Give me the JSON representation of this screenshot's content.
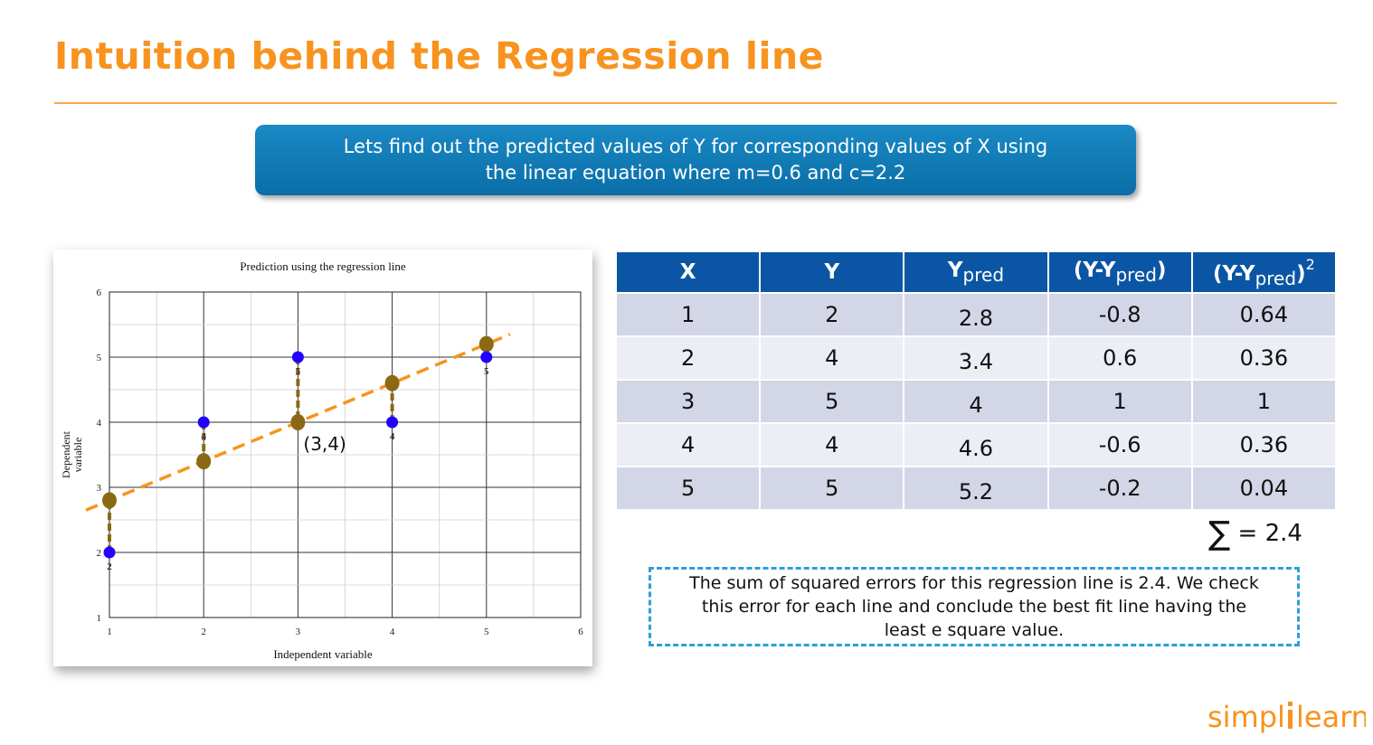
{
  "header": {
    "title": "Intuition behind the Regression line"
  },
  "banner": {
    "line1": "Lets find out the predicted values of Y for corresponding values of X using",
    "line2": "the linear equation where m=0.6 and c=2.2"
  },
  "chart_data": {
    "type": "scatter",
    "title": "Prediction using the regression line",
    "xlabel": "Independent variable",
    "ylabel": "Dependent variable",
    "xlim": [
      1,
      6
    ],
    "ylim": [
      1,
      6
    ],
    "xticks": [
      "1",
      "2",
      "3",
      "4",
      "5",
      "6"
    ],
    "yticks": [
      "1",
      "2",
      "3",
      "4",
      "5",
      "6"
    ],
    "grid": true,
    "series": [
      {
        "role": "actual",
        "color": "#2200ff",
        "points": [
          [
            1,
            2
          ],
          [
            2,
            4
          ],
          [
            3,
            5
          ],
          [
            4,
            4
          ],
          [
            5,
            5
          ]
        ]
      },
      {
        "role": "predicted",
        "color": "#8b6914",
        "points": [
          [
            1,
            2.8
          ],
          [
            2,
            3.4
          ],
          [
            3,
            4
          ],
          [
            4,
            4.6
          ],
          [
            5,
            5.2
          ]
        ]
      }
    ],
    "regression_line": {
      "m": 0.6,
      "c": 2.2,
      "x_range": [
        0.75,
        5.25
      ],
      "color": "#f7941d",
      "style": "dashed"
    },
    "point_labels": [
      "2",
      "4",
      "5",
      "4",
      "5"
    ],
    "annotation": "(3,4)"
  },
  "table": {
    "headers": [
      "X",
      "Y",
      "Y",
      "(Y-Y",
      "(Y-Y"
    ],
    "header_subs": [
      "",
      "",
      "pred",
      "pred",
      "pred"
    ],
    "header_tails": [
      "",
      "",
      "",
      ")",
      ")"
    ],
    "header_sups": [
      "",
      "",
      "",
      "",
      "2"
    ],
    "rows": [
      [
        "1",
        "2",
        "2.8",
        "-0.8",
        "0.64"
      ],
      [
        "2",
        "4",
        "3.4",
        "0.6",
        "0.36"
      ],
      [
        "3",
        "5",
        "4",
        "1",
        "1"
      ],
      [
        "4",
        "4",
        "4.6",
        "-0.6",
        "0.36"
      ],
      [
        "5",
        "5",
        "5.2",
        "-0.2",
        "0.04"
      ]
    ]
  },
  "summary": {
    "sigma": "∑",
    "value": "= 2.4"
  },
  "note": {
    "line1": "The sum of squared errors for this regression line is 2.4. We check",
    "line2": "this error for each line and conclude the best fit line having the",
    "line3": "least e square value."
  },
  "logo": {
    "part1": "simpl",
    "part2": "learn"
  },
  "colors": {
    "accent": "#f7931e",
    "banner": "#0b6fa8",
    "table_header": "#0b56a4",
    "note_border": "#2f9fd8"
  }
}
